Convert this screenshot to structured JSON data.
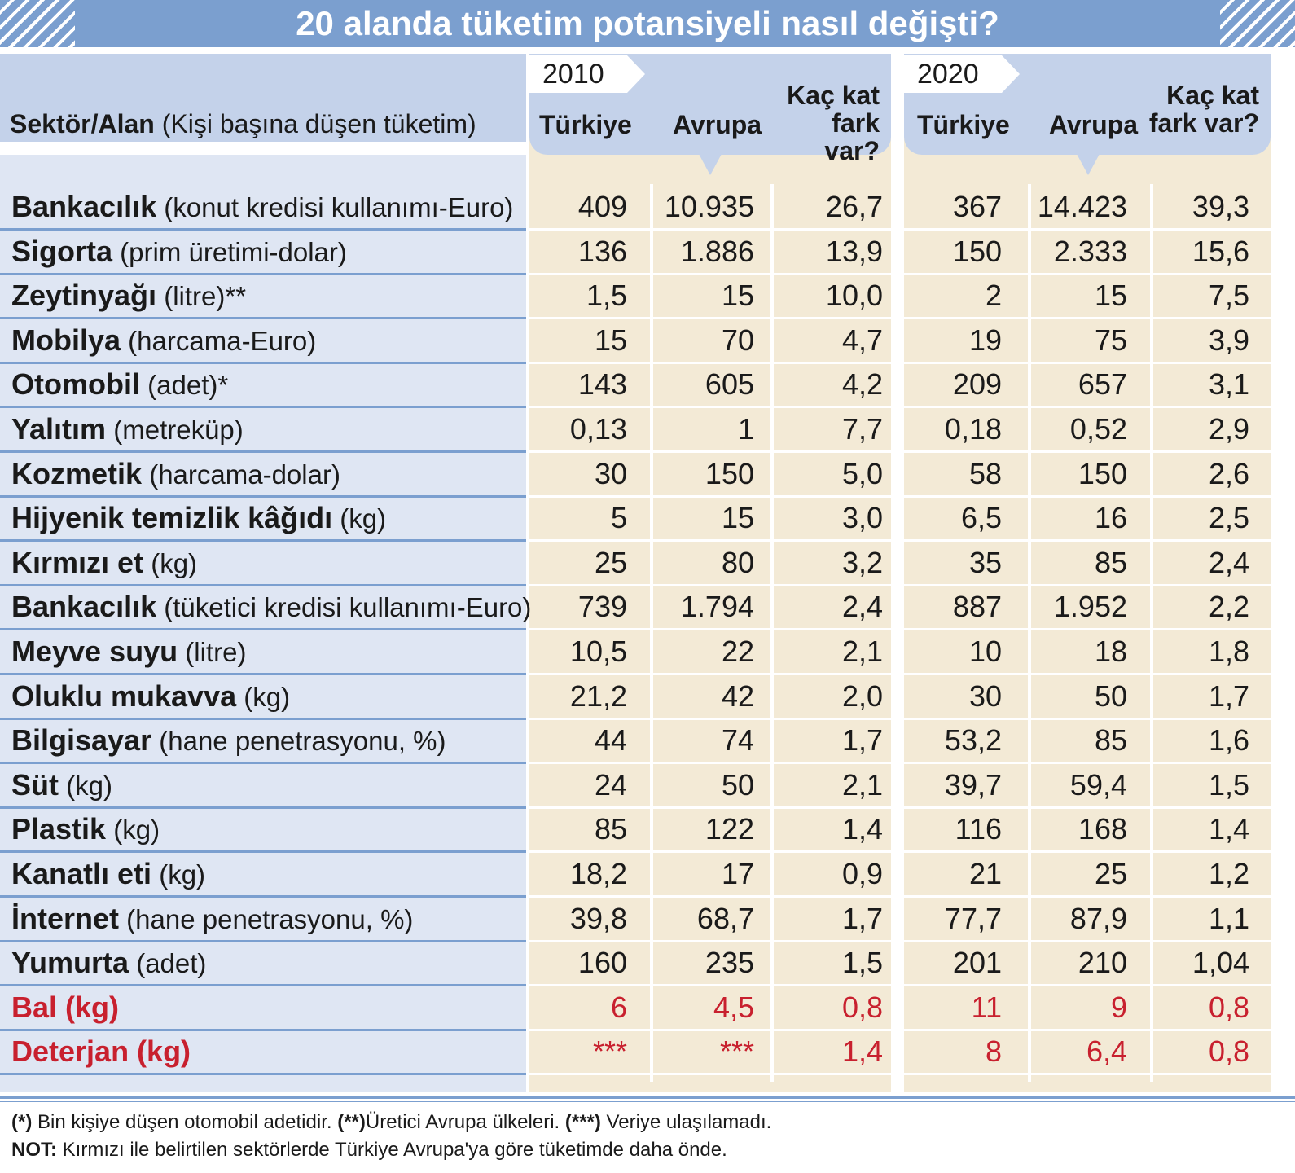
{
  "title": "20 alanda tüketim potansiyeli nasıl değişti?",
  "header": {
    "sector_bold": "Sektör/Alan",
    "sector_rest": " (Kişi başına düşen tüketim)",
    "year_2010": "2010",
    "year_2020": "2020",
    "col_turkey": "Türkiye",
    "col_europe": "Avrupa",
    "col_ratio_line1": "Kaç kat",
    "col_ratio_line2": "fark var?"
  },
  "chart_data": {
    "type": "table",
    "columns": [
      "Sektör/Alan (Kişi başına düşen tüketim)",
      "2010 Türkiye",
      "2010 Avrupa",
      "2010 Kaç kat fark var?",
      "2020 Türkiye",
      "2020 Avrupa",
      "2020 Kaç kat fark var?"
    ],
    "rows": [
      {
        "name": "Bankacılık",
        "unit": " (konut kredisi kullanımı-Euro)",
        "v": [
          "409",
          "10.935",
          "26,7",
          "367",
          "14.423",
          "39,3"
        ]
      },
      {
        "name": "Sigorta",
        "unit": " (prim üretimi-dolar)",
        "v": [
          "136",
          "1.886",
          "13,9",
          "150",
          "2.333",
          "15,6"
        ]
      },
      {
        "name": "Zeytinyağı",
        "unit": " (litre)**",
        "v": [
          "1,5",
          "15",
          "10,0",
          "2",
          "15",
          "7,5"
        ]
      },
      {
        "name": "Mobilya",
        "unit": " (harcama-Euro)",
        "v": [
          "15",
          "70",
          "4,7",
          "19",
          "75",
          "3,9"
        ]
      },
      {
        "name": "Otomobil",
        "unit": " (adet)*",
        "v": [
          "143",
          "605",
          "4,2",
          "209",
          "657",
          "3,1"
        ]
      },
      {
        "name": "Yalıtım",
        "unit": " (metreküp)",
        "v": [
          "0,13",
          "1",
          "7,7",
          "0,18",
          "0,52",
          "2,9"
        ]
      },
      {
        "name": "Kozmetik",
        "unit": " (harcama-dolar)",
        "v": [
          "30",
          "150",
          "5,0",
          "58",
          "150",
          "2,6"
        ]
      },
      {
        "name": "Hijyenik temizlik kâğıdı",
        "unit": " (kg)",
        "v": [
          "5",
          "15",
          "3,0",
          "6,5",
          "16",
          "2,5"
        ]
      },
      {
        "name": "Kırmızı et",
        "unit": " (kg)",
        "v": [
          "25",
          "80",
          "3,2",
          "35",
          "85",
          "2,4"
        ]
      },
      {
        "name": "Bankacılık",
        "unit": " (tüketici kredisi kullanımı-Euro)",
        "v": [
          "739",
          "1.794",
          "2,4",
          "887",
          "1.952",
          "2,2"
        ]
      },
      {
        "name": "Meyve suyu",
        "unit": " (litre)",
        "v": [
          "10,5",
          "22",
          "2,1",
          "10",
          "18",
          "1,8"
        ]
      },
      {
        "name": "Oluklu mukavva",
        "unit": " (kg)",
        "v": [
          "21,2",
          "42",
          "2,0",
          "30",
          "50",
          "1,7"
        ]
      },
      {
        "name": "Bilgisayar",
        "unit": " (hane penetrasyonu, %)",
        "v": [
          "44",
          "74",
          "1,7",
          "53,2",
          "85",
          "1,6"
        ]
      },
      {
        "name": "Süt",
        "unit": " (kg)",
        "v": [
          "24",
          "50",
          "2,1",
          "39,7",
          "59,4",
          "1,5"
        ]
      },
      {
        "name": "Plastik",
        "unit": " (kg)",
        "v": [
          "85",
          "122",
          "1,4",
          "116",
          "168",
          "1,4"
        ]
      },
      {
        "name": "Kanatlı eti",
        "unit": " (kg)",
        "v": [
          "18,2",
          "17",
          "0,9",
          "21",
          "25",
          "1,2"
        ]
      },
      {
        "name": "İnternet",
        "unit": " (hane penetrasyonu, %)",
        "v": [
          "39,8",
          "68,7",
          "1,7",
          "77,7",
          "87,9",
          "1,1"
        ]
      },
      {
        "name": "Yumurta",
        "unit": " (adet)",
        "v": [
          "160",
          "235",
          "1,5",
          "201",
          "210",
          "1,04"
        ]
      },
      {
        "name": "Bal (kg)",
        "unit": "",
        "v": [
          "6",
          "4,5",
          "0,8",
          "11",
          "9",
          "0,8"
        ],
        "highlight": true
      },
      {
        "name": "Deterjan (kg)",
        "unit": "",
        "v": [
          "***",
          "***",
          "1,4",
          "8",
          "6,4",
          "0,8"
        ],
        "highlight": true
      }
    ]
  },
  "footnotes": {
    "line1_a": "(*)",
    "line1_b": " Bin kişiye düşen otomobil adetidir. ",
    "line1_c": "(**)",
    "line1_d": "Üretici Avrupa ülkeleri. ",
    "line1_e": "(***)",
    "line1_f": " Veriye ulaşılamadı.",
    "line2_a": "NOT:",
    "line2_b": " Kırmızı ile belirtilen sektörlerde Türkiye Avrupa'ya göre tüketimde daha önde."
  },
  "colors": {
    "title_bg": "#7b9fcf",
    "header_bg": "#c4d2ea",
    "row_bg": "#dfe6f3",
    "cream": "#f3ead6",
    "highlight": "#c8202e"
  }
}
